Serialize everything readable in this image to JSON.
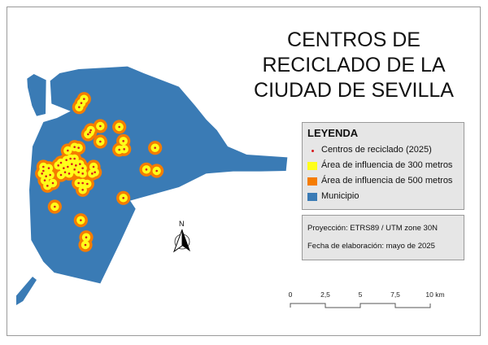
{
  "title": {
    "lines": [
      "CENTROS DE",
      "RECICLADO DE LA",
      "CIUDAD DE SEVILLA"
    ]
  },
  "legend": {
    "heading": "LEYENDA",
    "items": [
      {
        "label": "Centros de reciclado (2025)",
        "symbol": "point",
        "color": "#d7191c"
      },
      {
        "label": "Área de influencia de 300 metros",
        "symbol": "fill",
        "color": "#ffff1a"
      },
      {
        "label": "Área de influencia de 500 metros",
        "symbol": "fill",
        "color": "#f57c00"
      },
      {
        "label": "Municipio",
        "symbol": "fill",
        "color": "#3a7bb5"
      }
    ]
  },
  "info": {
    "projection": "Proyección: ETRS89 / UTM zone 30N",
    "date": "Fecha de elaboración: mayo de 2025"
  },
  "north_arrow": {
    "label": "N",
    "icon": "north-arrow-icon"
  },
  "scale_bar": {
    "labels": [
      "0",
      "2,5",
      "5",
      "7,5",
      "10 km"
    ]
  }
}
